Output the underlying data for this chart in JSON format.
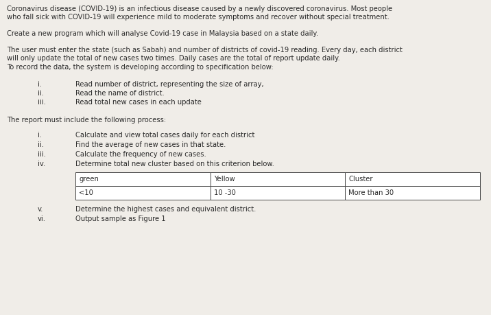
{
  "bg_color": "#f0ede8",
  "text_color": "#2a2a2a",
  "font_size": 7.2,
  "paragraphs": [
    "Coronavirus disease (COVID-19) is an infectious disease caused by a newly discovered coronavirus. Most people\nwho fall sick with COVID-19 will experience mild to moderate symptoms and recover without special treatment.",
    "Create a new program which will analyse Covid-19 case in Malaysia based on a state daily.",
    "The user must enter the state (such as Sabah) and number of districts of covid-19 reading. Every day, each district\nwill only update the total of new cases two times. Daily cases are the total of report update daily.\nTo record the data, the system is developing according to specification below:"
  ],
  "list1": [
    [
      "i.",
      "Read number of district, representing the size of array,"
    ],
    [
      "ii.",
      "Read the name of district."
    ],
    [
      "iii.",
      "Read total new cases in each update"
    ]
  ],
  "section2": "The report must include the following process:",
  "list2": [
    [
      "i.",
      "Calculate and view total cases daily for each district"
    ],
    [
      "ii.",
      "Find the average of new cases in that state."
    ],
    [
      "iii.",
      "Calculate the frequency of new cases."
    ],
    [
      "iv.",
      "Determine total new cluster based on this criterion below."
    ]
  ],
  "table_headers": [
    "green",
    "Yellow",
    "Cluster"
  ],
  "table_row": [
    "<10",
    "10 -30",
    "More than 30"
  ],
  "list3": [
    [
      "v.",
      "Determine the highest cases and equivalent district."
    ],
    [
      "vi.",
      "Output sample as Figure 1"
    ]
  ]
}
